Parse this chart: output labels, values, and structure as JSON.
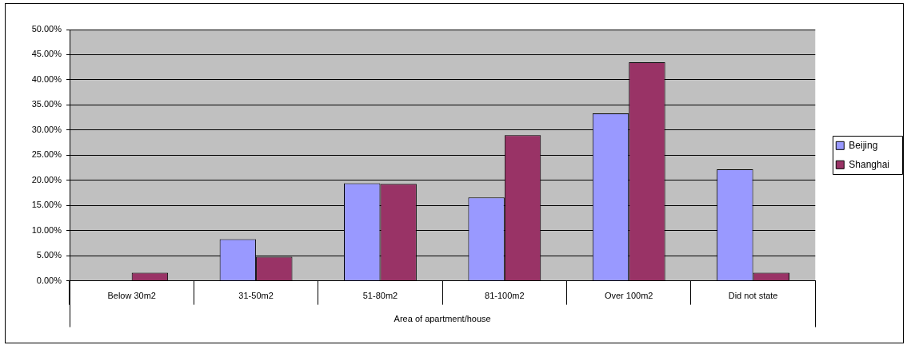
{
  "chart_data": {
    "type": "bar",
    "categories": [
      "Below 30m2",
      "31-50m2",
      "51-80m2",
      "81-100m2",
      "Over 100m2",
      "Did not state"
    ],
    "series": [
      {
        "name": "Beijing",
        "color": "#9999ff",
        "values": [
          0,
          8.3,
          19.4,
          16.6,
          33.3,
          22.2
        ]
      },
      {
        "name": "Shanghai",
        "color": "#993366",
        "values": [
          1.6,
          4.8,
          19.3,
          29.0,
          43.5,
          1.6
        ]
      }
    ],
    "xlabel": "Area of apartment/house",
    "ylim": [
      0,
      50
    ],
    "yticks": [
      {
        "value": 0,
        "label": "0.00%"
      },
      {
        "value": 5,
        "label": "5.00%"
      },
      {
        "value": 10,
        "label": "10.00%"
      },
      {
        "value": 15,
        "label": "15.00%"
      },
      {
        "value": 20,
        "label": "20.00%"
      },
      {
        "value": 25,
        "label": "25.00%"
      },
      {
        "value": 30,
        "label": "30.00%"
      },
      {
        "value": 35,
        "label": "35.00%"
      },
      {
        "value": 40,
        "label": "40.00%"
      },
      {
        "value": 45,
        "label": "45.00%"
      },
      {
        "value": 50,
        "label": "50.00%"
      }
    ],
    "grid": "y",
    "legend": "right"
  }
}
